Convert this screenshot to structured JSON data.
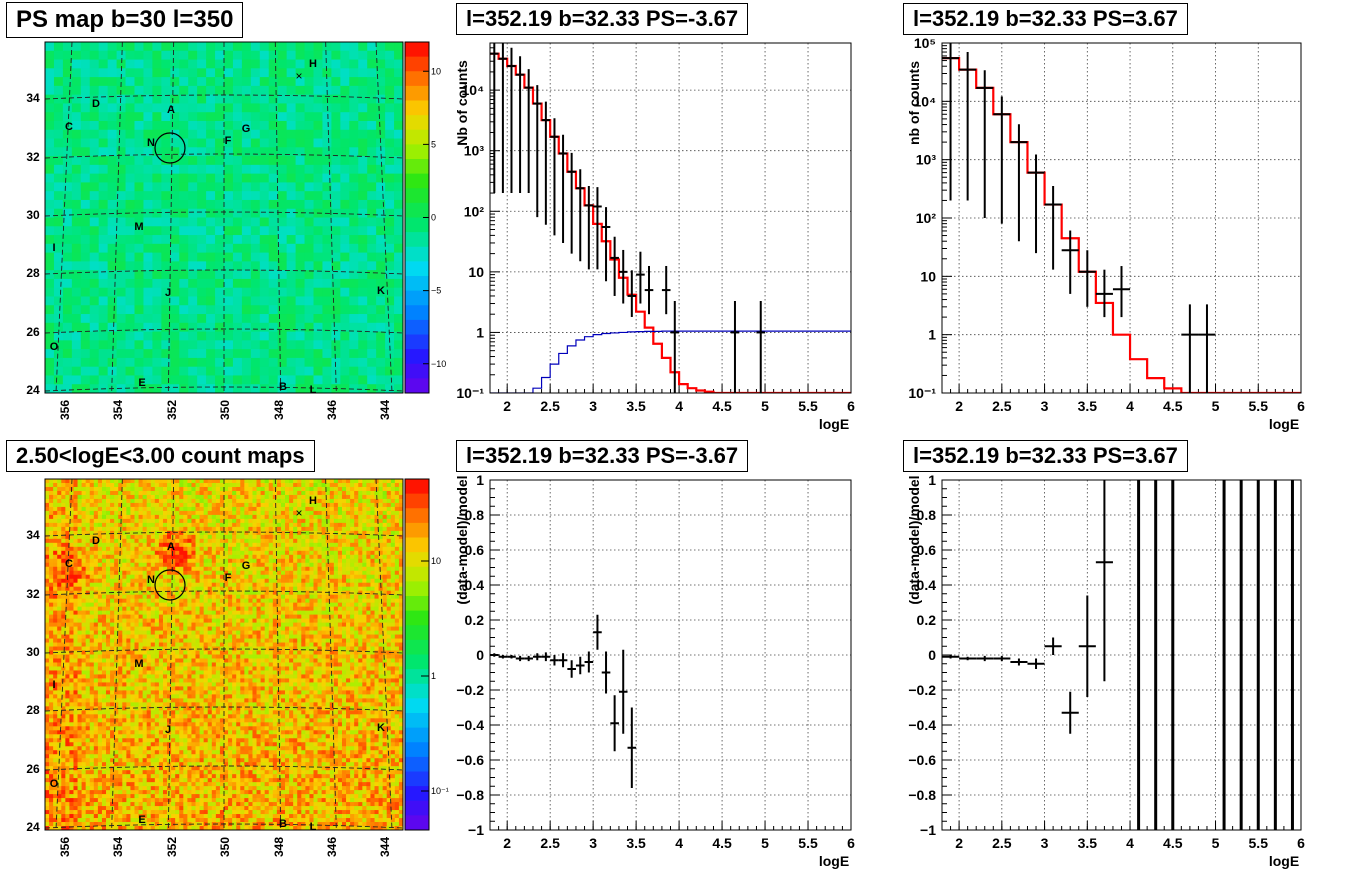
{
  "maps": {
    "top": {
      "title": "PS map b=30 l=350",
      "scale": "linear",
      "colorbar_ticks": [
        "10",
        "5",
        "0",
        "−5",
        "−10"
      ],
      "colorbar_values": [
        10,
        5,
        0,
        -5,
        -10
      ],
      "colorbar_range": [
        -12,
        12
      ]
    },
    "bottom": {
      "title": "2.50<logE<3.00 count maps",
      "scale": "log",
      "colorbar_ticks": [
        "10",
        "1",
        "10⁻¹"
      ],
      "colorbar_values": [
        1,
        0,
        -1
      ]
    },
    "lat_labels": [
      "34",
      "32",
      "30",
      "28",
      "26",
      "24"
    ],
    "lon_labels": [
      "356",
      "354",
      "352",
      "350",
      "348",
      "346",
      "344"
    ],
    "sources": [
      "H",
      "D",
      "A",
      "C",
      "N",
      "F",
      "G",
      "M",
      "I",
      "J",
      "K",
      "O",
      "E",
      "B",
      "L"
    ]
  },
  "chart_data": [
    {
      "type": "line",
      "title": "l=352.19 b=32.33 PS=-3.67",
      "xlabel": "logE",
      "ylabel": "Nb of counts",
      "log_y": true,
      "xlim": [
        1.8,
        6
      ],
      "ylim": [
        0.1,
        60000
      ],
      "x_ticks": [
        "2",
        "2.5",
        "3",
        "3.5",
        "4",
        "4.5",
        "5",
        "5.5",
        "6"
      ],
      "y_ticks": [
        "10⁻¹",
        "1",
        "10",
        "10²",
        "10³",
        "10⁴"
      ],
      "grid": true,
      "series": [
        {
          "color": "#ff0000",
          "style": "step",
          "x": [
            1.8,
            1.9,
            2.0,
            2.1,
            2.2,
            2.3,
            2.4,
            2.5,
            2.6,
            2.7,
            2.8,
            2.9,
            3.0,
            3.1,
            3.2,
            3.3,
            3.4,
            3.5,
            3.6,
            3.7,
            3.8,
            3.9,
            4.0,
            4.1,
            4.2,
            4.3,
            4.4,
            4.5,
            4.6,
            6.0
          ],
          "y": [
            40000,
            33000,
            25000,
            18000,
            11000,
            6000,
            3200,
            1700,
            900,
            450,
            240,
            125,
            62,
            32,
            16,
            8,
            4.2,
            2.2,
            1.2,
            0.65,
            0.38,
            0.22,
            0.14,
            0.12,
            0.11,
            0.105,
            0.1,
            0.1,
            0.1,
            0.1
          ]
        },
        {
          "color": "#0000bb",
          "style": "step",
          "x": [
            1.8,
            2.1,
            2.2,
            2.3,
            2.4,
            2.5,
            2.6,
            2.7,
            2.8,
            2.9,
            3.0,
            3.1,
            3.2,
            3.3,
            3.4,
            3.5,
            3.6,
            3.8,
            4.0,
            6.0
          ],
          "y": [
            0.1,
            0.1,
            0.1,
            0.12,
            0.18,
            0.3,
            0.45,
            0.6,
            0.75,
            0.85,
            0.92,
            0.96,
            0.98,
            1.0,
            1.02,
            1.03,
            1.04,
            1.05,
            1.05,
            1.05
          ]
        },
        {
          "color": "#000000",
          "style": "errorbar",
          "x": [
            1.85,
            1.95,
            2.05,
            2.15,
            2.25,
            2.35,
            2.45,
            2.55,
            2.65,
            2.75,
            2.85,
            2.95,
            3.05,
            3.15,
            3.25,
            3.35,
            3.45,
            3.55,
            3.65,
            3.85,
            3.95,
            4.65,
            4.95
          ],
          "y": [
            40000,
            33000,
            25000,
            18000,
            11000,
            6000,
            3200,
            1700,
            900,
            450,
            240,
            125,
            120,
            55,
            17,
            10,
            4,
            9,
            5,
            5,
            1,
            1,
            1
          ],
          "yerr_low": [
            39800,
            32800,
            24800,
            17800,
            10800,
            5920,
            3140,
            1660,
            870,
            430,
            225,
            114,
            109,
            48,
            13,
            7,
            2.2,
            6,
            3,
            3,
            0.99,
            0.99,
            0.99
          ],
          "yerr_high": [
            40200,
            33200,
            25200,
            18200,
            11200,
            6080,
            3260,
            1740,
            930,
            470,
            255,
            136,
            131,
            62,
            21,
            13,
            6.6,
            12.5,
            7.5,
            7.5,
            2.3,
            2.3,
            2.3
          ],
          "xerr": 0.05
        }
      ]
    },
    {
      "type": "line",
      "title": "l=352.19 b=32.33 PS=3.67",
      "xlabel": "logE",
      "ylabel": "nb of counts",
      "log_y": true,
      "xlim": [
        1.8,
        6
      ],
      "ylim": [
        0.1,
        100000
      ],
      "x_ticks": [
        "2",
        "2.5",
        "3",
        "3.5",
        "4",
        "4.5",
        "5",
        "5.5",
        "6"
      ],
      "y_ticks": [
        "10⁻¹",
        "1",
        "10",
        "10²",
        "10³",
        "10⁴",
        "10⁵"
      ],
      "grid": true,
      "series": [
        {
          "color": "#ff0000",
          "style": "step",
          "x": [
            1.8,
            2.0,
            2.2,
            2.4,
            2.6,
            2.8,
            3.0,
            3.2,
            3.4,
            3.6,
            3.8,
            4.0,
            4.2,
            4.4,
            4.6,
            6.0
          ],
          "y": [
            55000,
            35000,
            17000,
            6000,
            2000,
            600,
            170,
            45,
            12,
            3.5,
            1,
            0.38,
            0.18,
            0.12,
            0.1,
            0.1
          ]
        },
        {
          "color": "#000000",
          "style": "errorbar",
          "x": [
            1.9,
            2.1,
            2.3,
            2.5,
            2.7,
            2.9,
            3.1,
            3.3,
            3.5,
            3.7,
            3.9,
            4.7,
            4.9
          ],
          "y": [
            55000,
            35000,
            17000,
            6000,
            2000,
            600,
            170,
            28,
            12,
            5,
            6,
            1,
            1
          ],
          "yerr_low": [
            54800,
            34800,
            16900,
            5920,
            1960,
            575,
            157,
            23,
            9,
            3,
            4,
            0.99,
            0.99
          ],
          "yerr_high": [
            55200,
            35200,
            17100,
            6080,
            2040,
            625,
            183,
            33,
            16,
            8,
            9,
            2.3,
            2.3
          ],
          "xerr": 0.1
        }
      ]
    },
    {
      "type": "scatter",
      "title": "l=352.19 b=32.33 PS=-3.67",
      "xlabel": "logE",
      "ylabel": "(data-model)/model",
      "xlim": [
        1.8,
        6
      ],
      "ylim": [
        -1,
        1
      ],
      "x_ticks": [
        "2",
        "2.5",
        "3",
        "3.5",
        "4",
        "4.5",
        "5",
        "5.5",
        "6"
      ],
      "y_ticks": [
        "1",
        "0.8",
        "0.6",
        "0.4",
        "0.2",
        "0",
        "−0.2",
        "−0.4",
        "−0.6",
        "−0.8",
        "−1"
      ],
      "grid": true,
      "series": [
        {
          "color": "#000000",
          "style": "errorbar",
          "x": [
            1.85,
            1.95,
            2.05,
            2.15,
            2.25,
            2.35,
            2.45,
            2.55,
            2.65,
            2.75,
            2.85,
            2.95,
            3.05,
            3.15,
            3.25,
            3.35,
            3.45
          ],
          "y": [
            0.0,
            -0.01,
            -0.01,
            -0.02,
            -0.02,
            -0.01,
            -0.01,
            -0.03,
            -0.03,
            -0.08,
            -0.06,
            -0.04,
            0.13,
            -0.1,
            -0.39,
            -0.21,
            -0.53
          ],
          "yerr": [
            0.01,
            0.01,
            0.01,
            0.015,
            0.015,
            0.02,
            0.025,
            0.03,
            0.04,
            0.05,
            0.05,
            0.06,
            0.1,
            0.12,
            0.16,
            0.24,
            0.23
          ],
          "xerr": 0.05
        }
      ]
    },
    {
      "type": "scatter",
      "title": "l=352.19 b=32.33 PS=3.67",
      "xlabel": "logE",
      "ylabel": "(data-model)/model",
      "xlim": [
        1.8,
        6
      ],
      "ylim": [
        -1,
        1
      ],
      "x_ticks": [
        "2",
        "2.5",
        "3",
        "3.5",
        "4",
        "4.5",
        "5",
        "5.5",
        "6"
      ],
      "y_ticks": [
        "1",
        "0.8",
        "0.6",
        "0.4",
        "0.2",
        "0",
        "−0.2",
        "−0.4",
        "−0.6",
        "−0.8",
        "−1"
      ],
      "grid": true,
      "series": [
        {
          "color": "#000000",
          "style": "errorbar",
          "x": [
            1.9,
            2.1,
            2.3,
            2.5,
            2.7,
            2.9,
            3.1,
            3.3,
            3.5,
            3.7
          ],
          "y": [
            -0.01,
            -0.02,
            -0.02,
            -0.02,
            -0.04,
            -0.05,
            0.05,
            -0.33,
            0.05,
            0.53
          ],
          "yerr": [
            0.01,
            0.01,
            0.015,
            0.015,
            0.02,
            0.03,
            0.05,
            0.12,
            0.29,
            0.68
          ],
          "xerr": 0.1
        },
        {
          "color": "#000000",
          "style": "full_range_bars",
          "x": [
            4.1,
            4.3,
            4.5,
            5.1,
            5.3,
            5.5,
            5.7,
            5.9
          ]
        }
      ]
    }
  ]
}
